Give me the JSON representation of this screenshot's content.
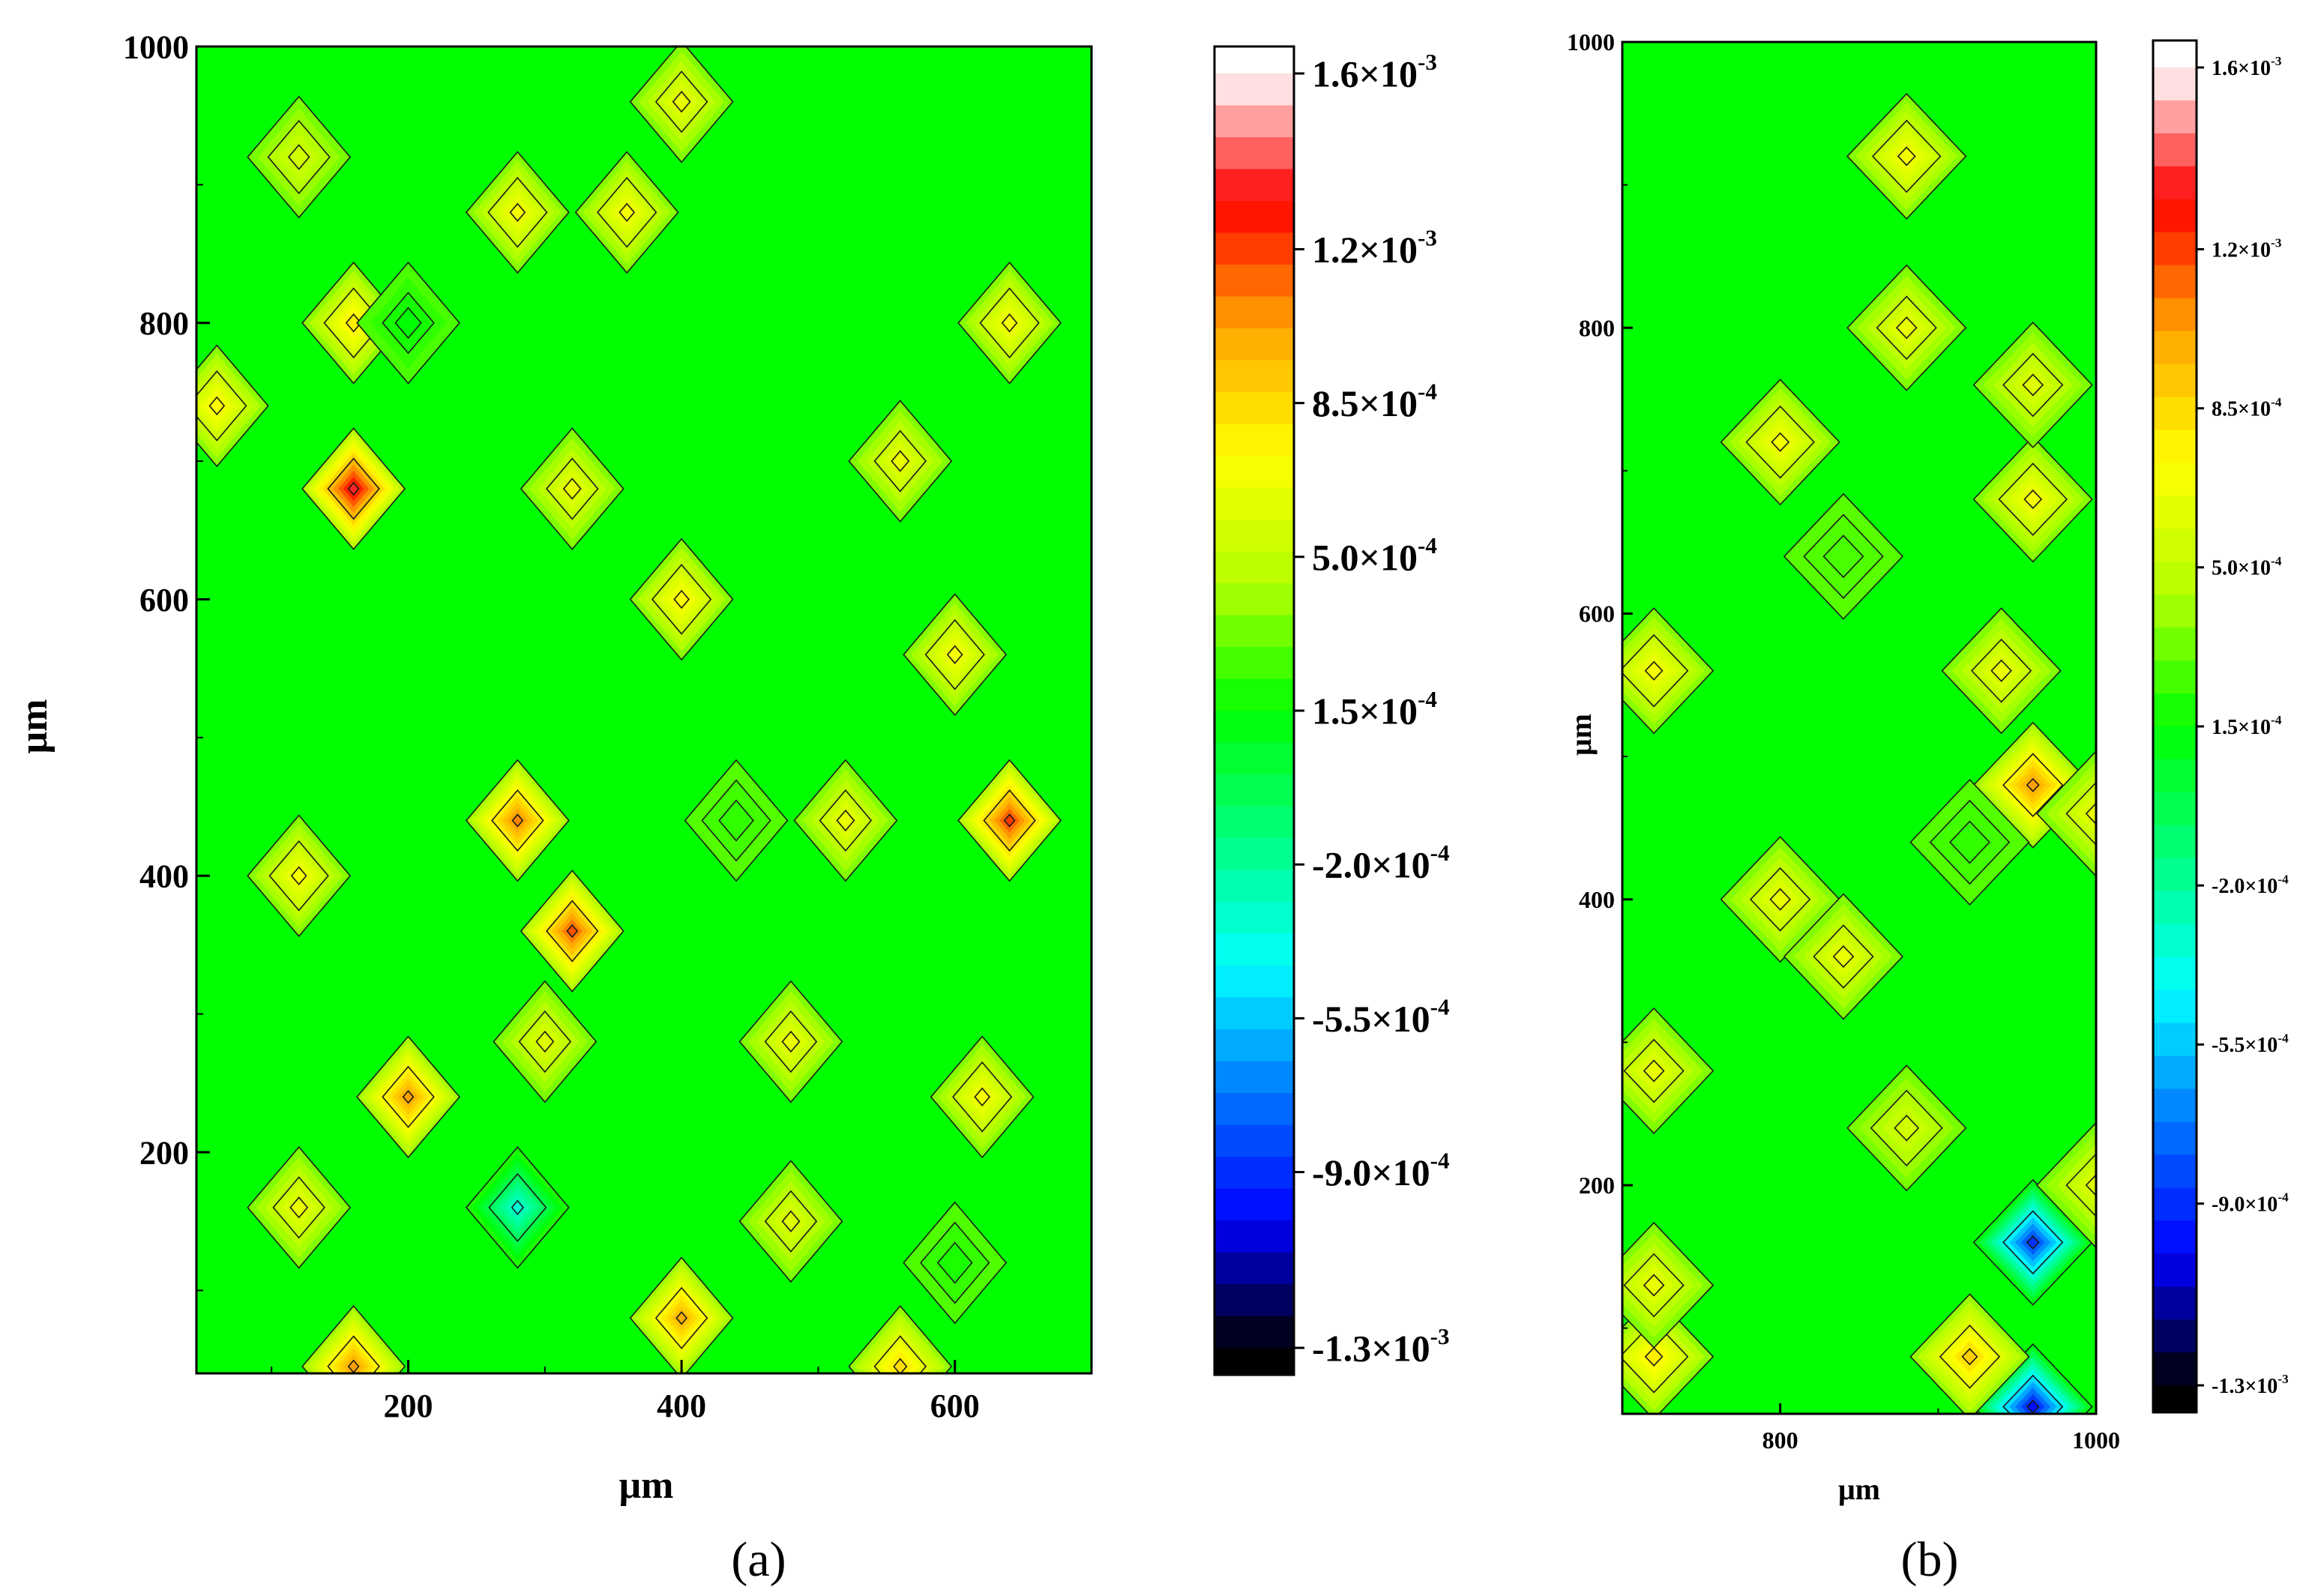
{
  "figure": {
    "panel_a_caption": "(a)",
    "panel_b_caption": "(b)"
  },
  "colors": {
    "background_green": "#00ff00",
    "contour_line": "#1a1a1a",
    "colorbar_stops": [
      "#000000",
      "#0000ff",
      "#0078ff",
      "#00ffff",
      "#00ff80",
      "#00ff00",
      "#b4ff00",
      "#ffff00",
      "#ffa500",
      "#ff0000",
      "#ffffff"
    ]
  },
  "chart_data": [
    {
      "type": "heatmap",
      "panel": "(a)",
      "xlabel": "μm",
      "ylabel": "μm",
      "xlim": [
        45,
        700
      ],
      "ylim": [
        40,
        1000
      ],
      "x_ticks": [
        200,
        400,
        600
      ],
      "y_ticks": [
        200,
        400,
        600,
        800,
        1000
      ],
      "grid": false,
      "background_value": 0.0003,
      "features": [
        {
          "x": 160,
          "y": 680,
          "value": 0.00145
        },
        {
          "x": 280,
          "y": 440,
          "value": 0.00115
        },
        {
          "x": 320,
          "y": 360,
          "value": 0.00125
        },
        {
          "x": 640,
          "y": 440,
          "value": 0.0013
        },
        {
          "x": 200,
          "y": 240,
          "value": 0.0011
        },
        {
          "x": 400,
          "y": 80,
          "value": 0.00105
        },
        {
          "x": 160,
          "y": 45,
          "value": 0.0011
        },
        {
          "x": 560,
          "y": 45,
          "value": 0.0009
        },
        {
          "x": 280,
          "y": 160,
          "value": -0.0004
        },
        {
          "x": 600,
          "y": 120,
          "value": 0.00015
        },
        {
          "x": 160,
          "y": 800,
          "value": 0.00085
        },
        {
          "x": 200,
          "y": 800,
          "value": 0.0001
        },
        {
          "x": 280,
          "y": 880,
          "value": 0.00075
        },
        {
          "x": 360,
          "y": 880,
          "value": 0.00075
        },
        {
          "x": 400,
          "y": 960,
          "value": 0.0007
        },
        {
          "x": 640,
          "y": 800,
          "value": 0.00075
        },
        {
          "x": 320,
          "y": 680,
          "value": 0.0007
        },
        {
          "x": 400,
          "y": 600,
          "value": 0.0008
        },
        {
          "x": 600,
          "y": 560,
          "value": 0.00075
        },
        {
          "x": 440,
          "y": 440,
          "value": 0.0002
        },
        {
          "x": 520,
          "y": 440,
          "value": 0.0007
        },
        {
          "x": 120,
          "y": 400,
          "value": 0.00075
        },
        {
          "x": 480,
          "y": 280,
          "value": 0.0007
        },
        {
          "x": 620,
          "y": 240,
          "value": 0.00075
        },
        {
          "x": 120,
          "y": 160,
          "value": 0.0007
        },
        {
          "x": 300,
          "y": 280,
          "value": 0.00065
        },
        {
          "x": 560,
          "y": 700,
          "value": 0.0007
        },
        {
          "x": 60,
          "y": 740,
          "value": 0.0008
        },
        {
          "x": 120,
          "y": 920,
          "value": 0.0006
        },
        {
          "x": 480,
          "y": 150,
          "value": 0.00065
        }
      ]
    },
    {
      "type": "heatmap",
      "panel": "(b)",
      "xlabel": "μm",
      "ylabel": "μm",
      "xlim": [
        700,
        1000
      ],
      "ylim": [
        40,
        1000
      ],
      "x_ticks": [
        800,
        1000
      ],
      "y_ticks": [
        200,
        400,
        600,
        800,
        1000
      ],
      "grid": false,
      "background_value": 0.0003,
      "features": [
        {
          "x": 960,
          "y": 160,
          "value": -0.001
        },
        {
          "x": 960,
          "y": 45,
          "value": -0.0011
        },
        {
          "x": 960,
          "y": 480,
          "value": 0.0011
        },
        {
          "x": 920,
          "y": 80,
          "value": 0.00095
        },
        {
          "x": 720,
          "y": 80,
          "value": 0.00085
        },
        {
          "x": 880,
          "y": 920,
          "value": 0.00075
        },
        {
          "x": 880,
          "y": 800,
          "value": 0.0007
        },
        {
          "x": 800,
          "y": 720,
          "value": 0.00075
        },
        {
          "x": 960,
          "y": 680,
          "value": 0.00075
        },
        {
          "x": 960,
          "y": 760,
          "value": 0.00065
        },
        {
          "x": 720,
          "y": 560,
          "value": 0.00075
        },
        {
          "x": 800,
          "y": 400,
          "value": 0.0007
        },
        {
          "x": 840,
          "y": 360,
          "value": 0.0007
        },
        {
          "x": 720,
          "y": 280,
          "value": 0.0007
        },
        {
          "x": 920,
          "y": 440,
          "value": 0.0002
        },
        {
          "x": 940,
          "y": 560,
          "value": 0.0007
        },
        {
          "x": 840,
          "y": 640,
          "value": 0.00025
        },
        {
          "x": 1000,
          "y": 460,
          "value": 0.0007
        },
        {
          "x": 720,
          "y": 130,
          "value": 0.0007
        },
        {
          "x": 880,
          "y": 240,
          "value": 0.0006
        },
        {
          "x": 1000,
          "y": 200,
          "value": 0.00065
        }
      ]
    }
  ],
  "colorbar": {
    "min": -0.0013,
    "max": 0.0016,
    "tick_values": [
      0.0016,
      0.0012,
      0.00085,
      0.0005,
      0.00015,
      -0.0002,
      -0.00055,
      -0.0009,
      -0.0013
    ],
    "tick_mantissas": [
      "1.6",
      "1.2",
      "8.5",
      "5.0",
      "1.5",
      "-2.0",
      "-5.5",
      "-9.0",
      "-1.3"
    ],
    "tick_exponents": [
      "-3",
      "-3",
      "-4",
      "-4",
      "-4",
      "-4",
      "-4",
      "-4",
      "-3"
    ],
    "times_base": "×10"
  }
}
